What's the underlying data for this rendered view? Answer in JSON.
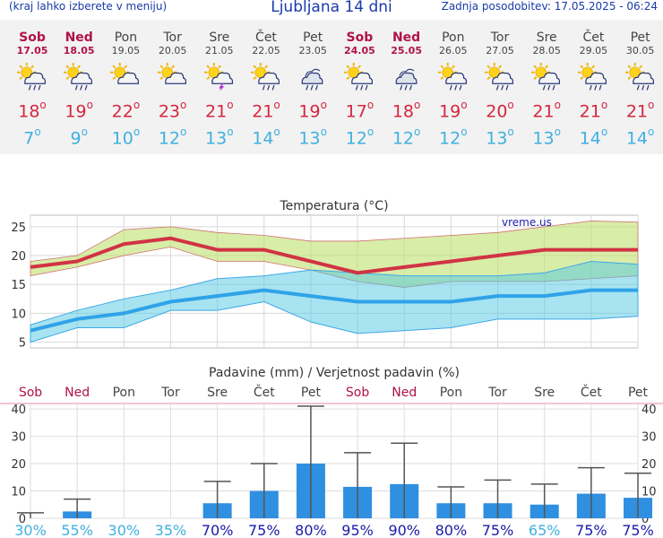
{
  "header": {
    "location_note": "(kraj lahko izberete v meniju)",
    "title": "Ljubljana 14 dni",
    "updated": "Zadnja posodobitev: 17.05.2025 - 06:24"
  },
  "colors": {
    "header_text": "#1a3aa8",
    "weekend": "#b0124a",
    "weekday": "#444444",
    "tmax": "#d6263e",
    "tmin": "#3fb0e0",
    "prob_low": "#3fb0e0",
    "prob_high": "#1a1aa8",
    "precip_bar": "#2f8fe0"
  },
  "days": [
    {
      "name": "Sob",
      "date": "17.05",
      "weekend": true,
      "icon": "sun-cloud-rain-icon",
      "tmax": "18",
      "tmin": "7"
    },
    {
      "name": "Ned",
      "date": "18.05",
      "weekend": true,
      "icon": "sun-cloud-rain-icon",
      "tmax": "19",
      "tmin": "9"
    },
    {
      "name": "Pon",
      "date": "19.05",
      "weekend": false,
      "icon": "sun-cloud-icon",
      "tmax": "22",
      "tmin": "10"
    },
    {
      "name": "Tor",
      "date": "20.05",
      "weekend": false,
      "icon": "sun-cloud-icon",
      "tmax": "23",
      "tmin": "12"
    },
    {
      "name": "Sre",
      "date": "21.05",
      "weekend": false,
      "icon": "sun-cloud-thunder-icon",
      "tmax": "21",
      "tmin": "13"
    },
    {
      "name": "Čet",
      "date": "22.05",
      "weekend": false,
      "icon": "sun-cloud-rain-icon",
      "tmax": "21",
      "tmin": "14"
    },
    {
      "name": "Pet",
      "date": "23.05",
      "weekend": false,
      "icon": "cloud-rain-icon",
      "tmax": "19",
      "tmin": "13"
    },
    {
      "name": "Sob",
      "date": "24.05",
      "weekend": true,
      "icon": "sun-cloud-rain-icon",
      "tmax": "17",
      "tmin": "12"
    },
    {
      "name": "Ned",
      "date": "25.05",
      "weekend": true,
      "icon": "cloud-rain-icon",
      "tmax": "18",
      "tmin": "12"
    },
    {
      "name": "Pon",
      "date": "26.05",
      "weekend": false,
      "icon": "sun-cloud-rain-icon",
      "tmax": "19",
      "tmin": "12"
    },
    {
      "name": "Tor",
      "date": "27.05",
      "weekend": false,
      "icon": "sun-cloud-rain-icon",
      "tmax": "20",
      "tmin": "13"
    },
    {
      "name": "Sre",
      "date": "28.05",
      "weekend": false,
      "icon": "sun-cloud-rain-icon",
      "tmax": "21",
      "tmin": "13"
    },
    {
      "name": "Čet",
      "date": "29.05",
      "weekend": false,
      "icon": "sun-cloud-rain-icon",
      "tmax": "21",
      "tmin": "14"
    },
    {
      "name": "Pet",
      "date": "30.05",
      "weekend": false,
      "icon": "sun-cloud-rain-icon",
      "tmax": "21",
      "tmin": "14"
    }
  ],
  "chart_data": [
    {
      "type": "line",
      "title": "Temperatura (°C)",
      "watermark": "vreme.us",
      "x": [
        "17.05",
        "18.05",
        "19.05",
        "20.05",
        "21.05",
        "22.05",
        "23.05",
        "24.05",
        "25.05",
        "26.05",
        "27.05",
        "28.05",
        "29.05",
        "30.05"
      ],
      "ylim": [
        4,
        27
      ],
      "yticks": [
        5,
        10,
        15,
        20,
        25
      ],
      "grid": true,
      "series": [
        {
          "values": [
            18,
            19,
            22,
            23,
            21,
            21,
            19,
            17,
            18,
            19,
            20,
            21,
            21,
            21
          ]
        },
        {
          "values": [
            7,
            9,
            10,
            12,
            13,
            14,
            13,
            12,
            12,
            12,
            13,
            13,
            14,
            14
          ]
        },
        {
          "values": [
            19,
            20,
            24.5,
            25,
            24,
            23.5,
            22.5,
            22.5,
            23,
            23.5,
            24,
            25,
            26,
            25.8
          ]
        },
        {
          "values": [
            16.5,
            18,
            20,
            21.5,
            19,
            19,
            17.5,
            15.5,
            14.5,
            15.5,
            15.5,
            15.5,
            16,
            16.5
          ]
        },
        {
          "values": [
            8,
            10.5,
            12.5,
            14,
            16,
            16.5,
            17.5,
            17,
            16.5,
            16.5,
            16.5,
            17,
            19,
            18.5
          ]
        },
        {
          "values": [
            5,
            7.5,
            7.5,
            10.5,
            10.5,
            12,
            8.5,
            6.5,
            7,
            7.5,
            9,
            9,
            9,
            9.5
          ]
        }
      ]
    },
    {
      "type": "bar",
      "title": "Padavine (mm) / Verjetnost padavin (%)",
      "categories": [
        "Sob",
        "Ned",
        "Pon",
        "Tor",
        "Sre",
        "Čet",
        "Pet",
        "Sob",
        "Ned",
        "Pon",
        "Tor",
        "Sre",
        "Čet",
        "Pet"
      ],
      "ylim": [
        0,
        42
      ],
      "yticks": [
        0,
        10,
        20,
        30,
        40
      ],
      "series": [
        {
          "values": [
            0,
            2.5,
            0,
            0,
            5.5,
            10,
            20,
            11.5,
            12.5,
            5.5,
            5.5,
            5,
            9,
            7.5
          ]
        }
      ],
      "error_high": [
        2,
        7,
        0,
        0,
        13.5,
        20,
        41,
        24,
        27.5,
        11.5,
        14,
        12.5,
        18.5,
        16.5
      ],
      "probability": [
        "30%",
        "55%",
        "30%",
        "35%",
        "70%",
        "75%",
        "80%",
        "95%",
        "90%",
        "80%",
        "75%",
        "65%",
        "75%",
        "75%"
      ]
    }
  ]
}
